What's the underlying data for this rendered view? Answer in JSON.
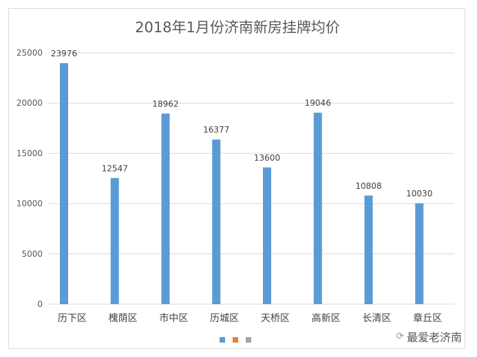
{
  "chart_data": {
    "type": "bar",
    "title": "2018年1月份济南新房挂牌均价",
    "categories": [
      "历下区",
      "槐荫区",
      "市中区",
      "历城区",
      "天桥区",
      "高新区",
      "长清区",
      "章丘区"
    ],
    "series": [
      {
        "values": [
          23976,
          12547,
          18962,
          16377,
          13600,
          19046,
          10808,
          10030
        ],
        "color": "#5b9bd5"
      }
    ],
    "legend_swatches": [
      "#5b9bd5",
      "#ed7d31",
      "#a5a5a5"
    ],
    "legend_position": "bottom",
    "ylim": [
      0,
      25000
    ],
    "yticks": [
      0,
      5000,
      10000,
      15000,
      20000,
      25000
    ],
    "grid": true,
    "xlabel": "",
    "ylabel": ""
  },
  "watermark": {
    "text": "最爱老济南",
    "icon": "wechat-icon"
  }
}
